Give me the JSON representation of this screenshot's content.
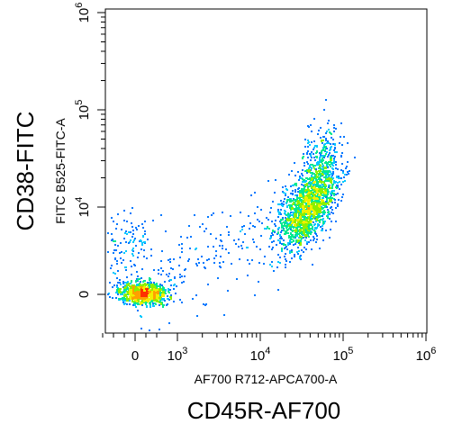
{
  "chart_data": {
    "type": "scatter",
    "title": "",
    "plot_style": "flow cytometry density dot plot",
    "x_scale": "biexponential (log with linear region near zero)",
    "y_scale": "biexponential (log with linear region near zero)",
    "xlabel": "AF700 R712-APCA700-A",
    "ylabel": "FITC B525-FITC-A",
    "outer_xlabel": "CD45R-AF700",
    "outer_ylabel": "CD38-FITC",
    "x_ticks": [
      {
        "base": "0",
        "exp": ""
      },
      {
        "base": "10",
        "exp": "3"
      },
      {
        "base": "10",
        "exp": "4"
      },
      {
        "base": "10",
        "exp": "5"
      },
      {
        "base": "10",
        "exp": "6"
      }
    ],
    "y_ticks": [
      {
        "base": "0",
        "exp": ""
      },
      {
        "base": "10",
        "exp": "4"
      },
      {
        "base": "10",
        "exp": "5"
      },
      {
        "base": "10",
        "exp": "6"
      }
    ],
    "xlim_log10": [
      -0.5,
      6
    ],
    "ylim_log10": [
      -0.5,
      6
    ],
    "populations": [
      {
        "label": "",
        "x_center_log10": 0.1,
        "y_center_log10": 0.02,
        "approx_share": 0.3
      },
      {
        "label": "",
        "x_center_log10": 4.55,
        "y_center_log10": 4.0,
        "approx_share": 0.55
      },
      {
        "label": "",
        "x_center_log10": 4.7,
        "y_center_log10": 4.55,
        "approx_share": 0.08
      }
    ],
    "density_colors": [
      "#0000ff",
      "#0078ff",
      "#00c8ff",
      "#00e890",
      "#8cf000",
      "#f0f000",
      "#ffa000",
      "#ff3000"
    ],
    "grid": false,
    "legend": "none"
  }
}
